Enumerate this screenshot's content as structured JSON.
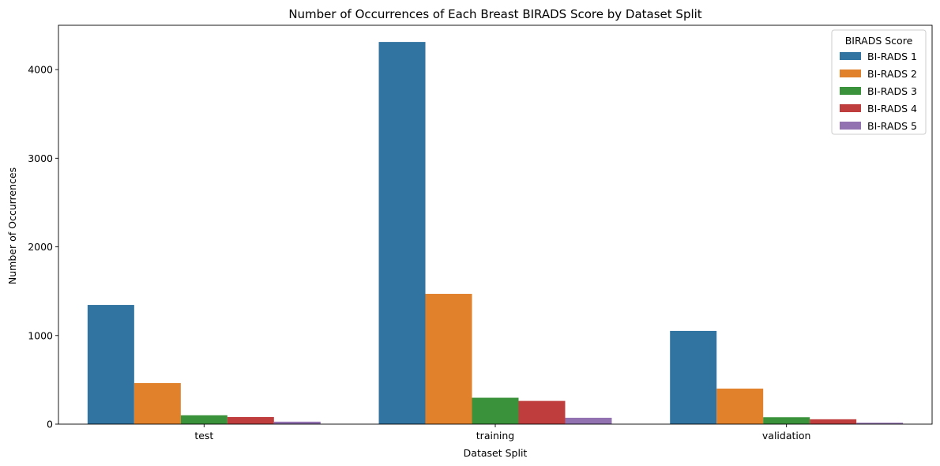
{
  "chart_data": {
    "type": "bar",
    "title": "Number of Occurrences of Each Breast BIRADS Score by Dataset Split",
    "xlabel": "Dataset Split",
    "ylabel": "Number of Occurrences",
    "categories": [
      "test",
      "training",
      "validation"
    ],
    "ylim": [
      0,
      4500
    ],
    "yticks": [
      0,
      1000,
      2000,
      3000,
      4000
    ],
    "legend_title": "BIRADS Score",
    "legend_position": "top-right",
    "grid": false,
    "series": [
      {
        "name": "BI-RADS 1",
        "color": "#3274a1",
        "values": [
          1345,
          4312,
          1052
        ]
      },
      {
        "name": "BI-RADS 2",
        "color": "#e1812c",
        "values": [
          463,
          1470,
          401
        ]
      },
      {
        "name": "BI-RADS 3",
        "color": "#3a923a",
        "values": [
          100,
          298,
          78
        ]
      },
      {
        "name": "BI-RADS 4",
        "color": "#c03d3e",
        "values": [
          80,
          262,
          55
        ]
      },
      {
        "name": "BI-RADS 5",
        "color": "#9372b2",
        "values": [
          28,
          72,
          16
        ]
      }
    ]
  }
}
